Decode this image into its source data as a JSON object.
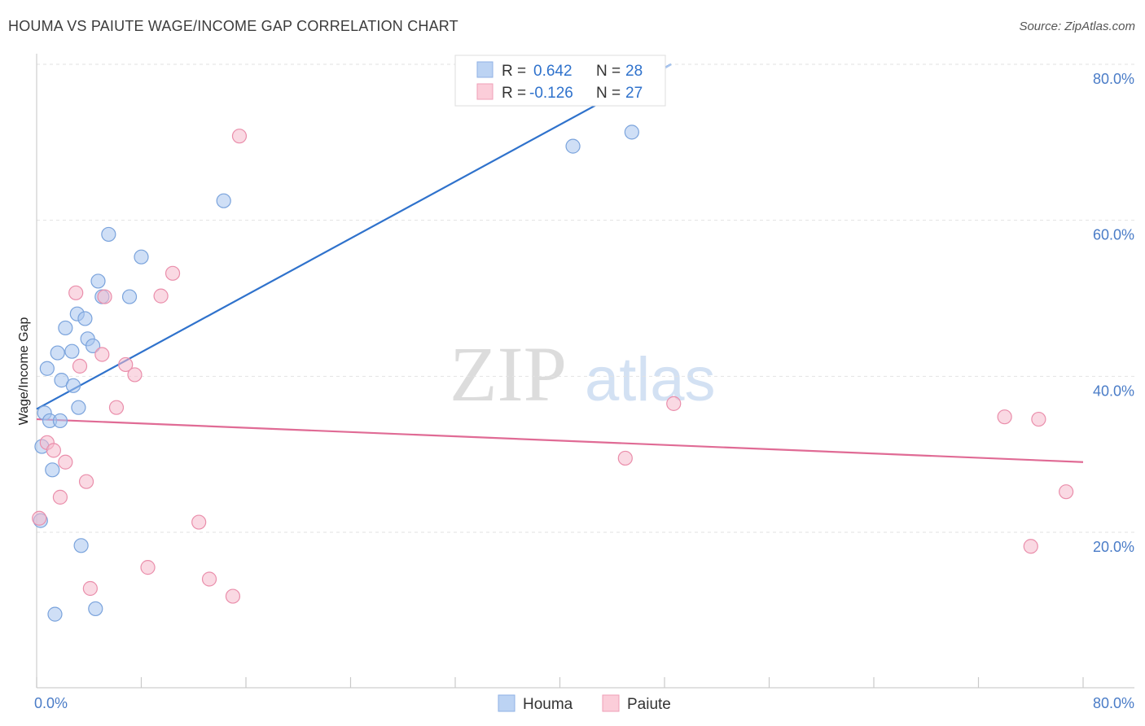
{
  "header": {
    "title": "HOUMA VS PAIUTE WAGE/INCOME GAP CORRELATION CHART",
    "source": "Source: ZipAtlas.com"
  },
  "watermark": {
    "zip": "ZIP",
    "atlas": "atlas"
  },
  "legend_box": {
    "rows": [
      {
        "r_label": "R =",
        "r_value": "0.642",
        "n_label": "N =",
        "n_value": "28",
        "color": "#a7c4ee"
      },
      {
        "r_label": "R =",
        "r_value": "-0.126",
        "n_label": "N =",
        "n_value": "27",
        "color": "#f5b9cc"
      }
    ]
  },
  "chart_data": {
    "type": "scatter",
    "title": "HOUMA VS PAIUTE WAGE/INCOME GAP CORRELATION CHART",
    "xlabel": "",
    "ylabel": "Wage/Income Gap",
    "xlim": [
      0,
      80
    ],
    "ylim": [
      0,
      82
    ],
    "x_tick_labels": [
      "0.0%",
      "80.0%"
    ],
    "y_ticks": [
      20,
      40,
      60,
      80
    ],
    "y_tick_labels": [
      "20.0%",
      "40.0%",
      "60.0%",
      "80.0%"
    ],
    "series": [
      {
        "name": "Houma",
        "color": "#a7c4ee",
        "stroke": "#7aa3dc",
        "line_color": "#2f72cc",
        "trend": {
          "x": [
            0,
            48.5
          ],
          "y": [
            35.8,
            80
          ]
        },
        "trend_ext": {
          "x": [
            46,
            48.5
          ],
          "y": [
            77.5,
            80
          ]
        },
        "points": [
          [
            0.3,
            21.5
          ],
          [
            0.4,
            31
          ],
          [
            0.6,
            35.3
          ],
          [
            0.8,
            41
          ],
          [
            1.0,
            34.3
          ],
          [
            1.2,
            28
          ],
          [
            1.4,
            9.5
          ],
          [
            1.6,
            43
          ],
          [
            1.8,
            34.3
          ],
          [
            1.9,
            39.5
          ],
          [
            2.2,
            46.2
          ],
          [
            2.7,
            43.2
          ],
          [
            2.8,
            38.8
          ],
          [
            3.1,
            48
          ],
          [
            3.2,
            36
          ],
          [
            3.4,
            18.3
          ],
          [
            3.7,
            47.4
          ],
          [
            3.9,
            44.8
          ],
          [
            4.3,
            43.9
          ],
          [
            4.5,
            10.2
          ],
          [
            4.7,
            52.2
          ],
          [
            5.0,
            50.2
          ],
          [
            5.5,
            58.2
          ],
          [
            7.1,
            50.2
          ],
          [
            8.0,
            55.3
          ],
          [
            14.3,
            62.5
          ],
          [
            41.0,
            69.5
          ],
          [
            45.5,
            71.3
          ]
        ]
      },
      {
        "name": "Paiute",
        "color": "#f5b9cc",
        "stroke": "#ea8eab",
        "line_color": "#e06b95",
        "trend": {
          "x": [
            0,
            80
          ],
          "y": [
            34.5,
            29
          ]
        },
        "points": [
          [
            0.2,
            21.8
          ],
          [
            0.8,
            31.5
          ],
          [
            1.3,
            30.5
          ],
          [
            1.8,
            24.5
          ],
          [
            2.2,
            29
          ],
          [
            3.0,
            50.7
          ],
          [
            3.3,
            41.3
          ],
          [
            3.8,
            26.5
          ],
          [
            4.1,
            12.8
          ],
          [
            5.0,
            42.8
          ],
          [
            5.2,
            50.2
          ],
          [
            6.1,
            36
          ],
          [
            6.8,
            41.5
          ],
          [
            7.5,
            40.2
          ],
          [
            8.5,
            15.5
          ],
          [
            9.5,
            50.3
          ],
          [
            10.4,
            53.2
          ],
          [
            12.4,
            21.3
          ],
          [
            13.2,
            14
          ],
          [
            15.0,
            11.8
          ],
          [
            15.5,
            70.8
          ],
          [
            45.0,
            29.5
          ],
          [
            48.7,
            36.5
          ],
          [
            74.0,
            34.8
          ],
          [
            76.6,
            34.5
          ],
          [
            76.0,
            18.2
          ],
          [
            78.7,
            25.2
          ]
        ]
      }
    ]
  }
}
